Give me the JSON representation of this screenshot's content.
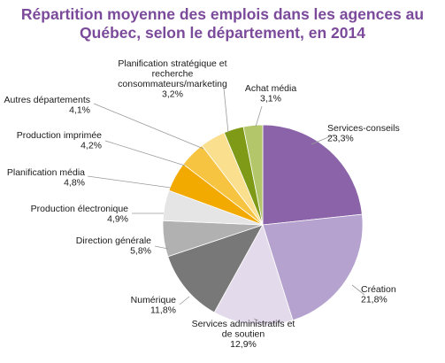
{
  "title": {
    "line1": "Répartition moyenne des emplois dans les agences au",
    "line2": "Québec, selon le département, en 2014"
  },
  "chart_data": {
    "type": "pie",
    "title": "Répartition moyenne des emplois dans les agences au Québec, selon le département, en 2014",
    "start": "12 o'clock, clockwise",
    "slices": [
      {
        "label_lines": [
          "Services-conseils"
        ],
        "value_text": "23,3%",
        "value": 23.3,
        "color": "#8a63a8"
      },
      {
        "label_lines": [
          "Création"
        ],
        "value_text": "21,8%",
        "value": 21.8,
        "color": "#b5a2cf"
      },
      {
        "label_lines": [
          "Services administratifs et",
          "de soutien"
        ],
        "value_text": "12,9%",
        "value": 12.9,
        "color": "#e3dbeb"
      },
      {
        "label_lines": [
          "Numérique"
        ],
        "value_text": "11,8%",
        "value": 11.8,
        "color": "#787878"
      },
      {
        "label_lines": [
          "Direction générale"
        ],
        "value_text": "5,8%",
        "value": 5.8,
        "color": "#b1b1b1"
      },
      {
        "label_lines": [
          "Production électronique"
        ],
        "value_text": "4,9%",
        "value": 4.9,
        "color": "#e5e5e5"
      },
      {
        "label_lines": [
          "Planification média"
        ],
        "value_text": "4,8%",
        "value": 4.8,
        "color": "#f2a900"
      },
      {
        "label_lines": [
          "Production imprimée"
        ],
        "value_text": "4,2%",
        "value": 4.2,
        "color": "#f6c440"
      },
      {
        "label_lines": [
          "Autres départements"
        ],
        "value_text": "4,1%",
        "value": 4.1,
        "color": "#fadf8f"
      },
      {
        "label_lines": [
          "Planification stratégique et",
          "recherche",
          "consommateurs/marketing"
        ],
        "value_text": "3,2%",
        "value": 3.2,
        "color": "#7f9a16"
      },
      {
        "label_lines": [
          "Achat média"
        ],
        "value_text": "3,1%",
        "value": 3.1,
        "color": "#b4c66a"
      }
    ]
  }
}
